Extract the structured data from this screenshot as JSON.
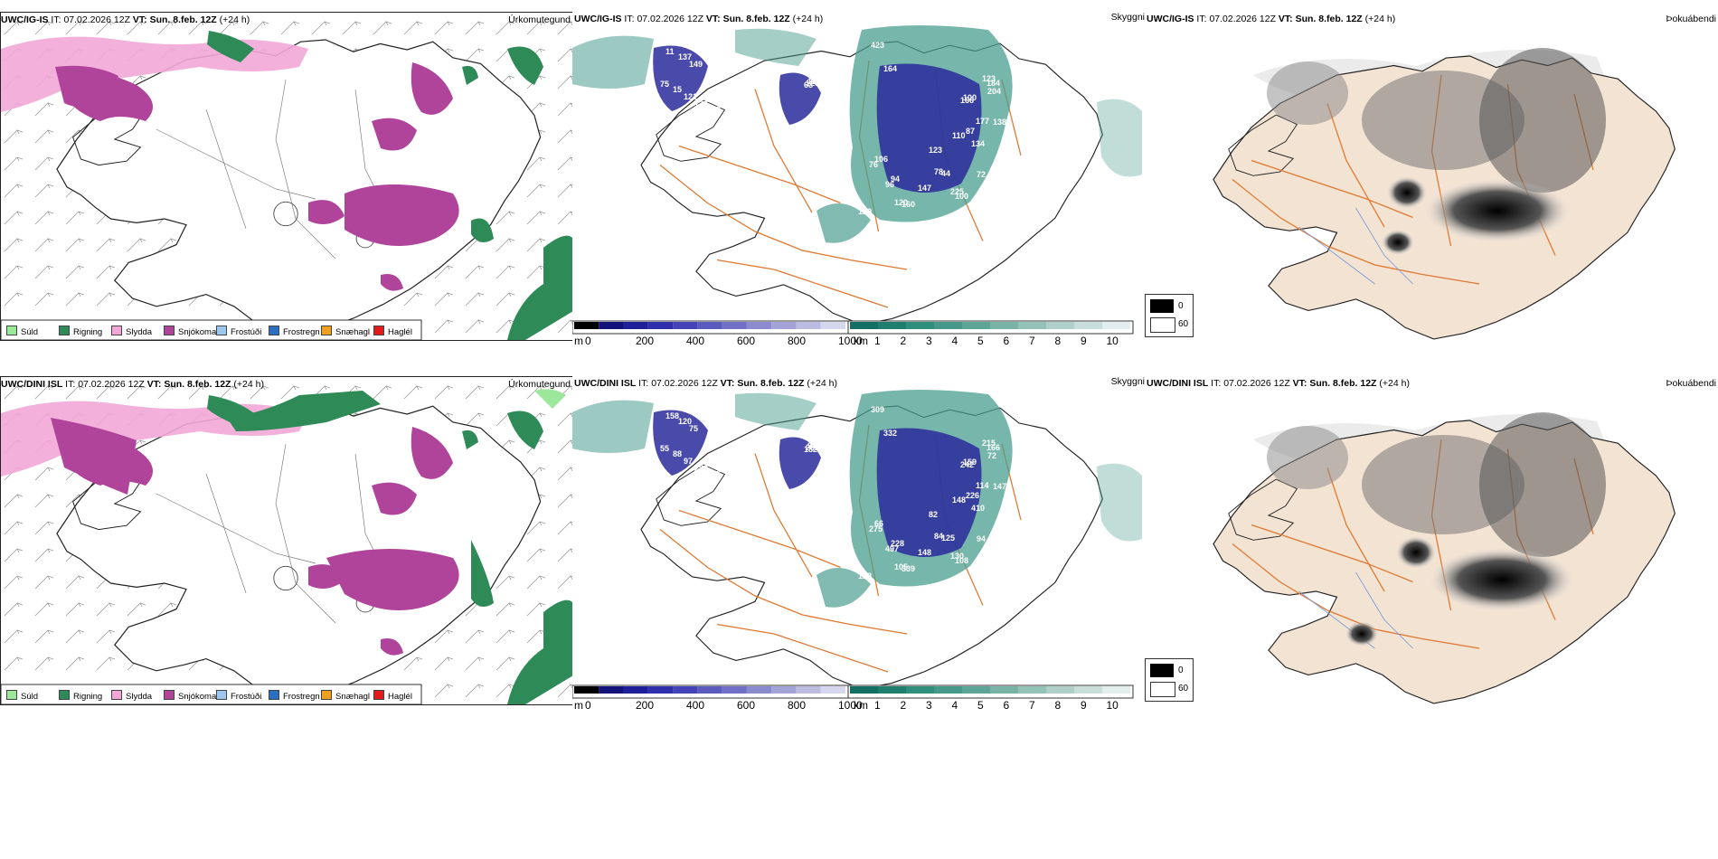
{
  "rows": [
    {
      "precip": {
        "model": "UWC/IG-IS",
        "it_label": "IT:",
        "it_value": "07.02.2026 12Z",
        "vt_label": "VT:",
        "vt_value": "Sun. 8.feb. 12Z",
        "lead": "(+24 h)",
        "title": "Úrkomutegund"
      },
      "cloud": {
        "model": "UWC/IG-IS",
        "it_label": "IT:",
        "it_value": "07.02.2026 12Z",
        "vt_label": "VT:",
        "vt_value": "Sun. 8.feb. 12Z",
        "lead": "(+24 h)",
        "title": "Skyggni",
        "base_values": [
          "423",
          "11",
          "63",
          "204",
          "94",
          "100",
          "130",
          "128",
          "134",
          "106",
          "123",
          "75",
          "115",
          "100",
          "129",
          "120",
          "149",
          "140",
          "138",
          "225",
          "184",
          "99",
          "55",
          "72",
          "78",
          "110",
          "121",
          "109",
          "166",
          "189",
          "147",
          "99",
          "98",
          "178",
          "160",
          "164",
          "137",
          "125",
          "123",
          "96",
          "177",
          "150",
          "174",
          "87",
          "76",
          "44",
          "15",
          "10"
        ]
      },
      "fog": {
        "model": "UWC/IG-IS",
        "it_label": "IT:",
        "it_value": "07.02.2026 12Z",
        "vt_label": "VT:",
        "vt_value": "Sun. 8.feb. 12Z",
        "lead": "(+24 h)",
        "title": "Þokuábendi"
      }
    },
    {
      "precip": {
        "model": "UWC/DINI ISL",
        "it_label": "IT:",
        "it_value": "07.02.2026 12Z",
        "vt_label": "VT:",
        "vt_value": "Sun. 8.feb. 12Z",
        "lead": "(+24 h)",
        "title": "Úrkomutegund"
      },
      "cloud": {
        "model": "UWC/DINI ISL",
        "it_label": "IT:",
        "it_value": "07.02.2026 12Z",
        "vt_label": "VT:",
        "vt_value": "Sun. 8.feb. 12Z",
        "lead": "(+24 h)",
        "title": "Skyggni",
        "base_values": [
          "309",
          "158",
          "182",
          "72",
          "228",
          "159",
          "283",
          "262",
          "410",
          "66",
          "82",
          "55",
          "95",
          "108",
          "128",
          "105",
          "75",
          "267",
          "147",
          "130",
          "166",
          "233",
          "306",
          "94",
          "84",
          "148",
          "97",
          "271",
          "242",
          "82",
          "148",
          "110",
          "98",
          "180",
          "339",
          "332",
          "120",
          "228",
          "215",
          "497",
          "114",
          "156",
          "77",
          "226",
          "275",
          "125",
          "88",
          "66"
        ]
      },
      "fog": {
        "model": "UWC/DINI ISL",
        "it_label": "IT:",
        "it_value": "07.02.2026 12Z",
        "vt_label": "VT:",
        "vt_value": "Sun. 8.feb. 12Z",
        "lead": "(+24 h)",
        "title": "Þokuábendi"
      }
    }
  ],
  "precip_legend": [
    {
      "label": "Súld",
      "color": "#9be89b"
    },
    {
      "label": "Rigning",
      "color": "#2e8b57"
    },
    {
      "label": "Slydda",
      "color": "#f2a7d6"
    },
    {
      "label": "Snjókoma",
      "color": "#b0449b"
    },
    {
      "label": "Frostúði",
      "color": "#9cc8f0"
    },
    {
      "label": "Frostregn",
      "color": "#2b6fc0"
    },
    {
      "label": "Snæhagl",
      "color": "#f0a020"
    },
    {
      "label": "Haglél",
      "color": "#e31a1c"
    }
  ],
  "height_bar": {
    "unit": "m",
    "ticks": [
      "0",
      "200",
      "400",
      "600",
      "800",
      "1000"
    ],
    "colors": [
      "#000000",
      "#12127a",
      "#1f1f9a",
      "#2f2fae",
      "#4444b8",
      "#5a5abf",
      "#7070c6",
      "#8a8acf",
      "#a3a3d8",
      "#bcbce3",
      "#d6d6ee"
    ]
  },
  "vis_bar": {
    "unit": "km",
    "ticks": [
      "1",
      "2",
      "3",
      "4",
      "5",
      "6",
      "7",
      "8",
      "9",
      "10"
    ],
    "colors": [
      "#136f63",
      "#1f7f6f",
      "#2f8f7c",
      "#46998a",
      "#5da597",
      "#78b3a6",
      "#93c2b7",
      "#aed0c8",
      "#c8dfd9",
      "#e2eeeb"
    ]
  },
  "fog_legend": {
    "values": [
      "0",
      "60"
    ],
    "colors": [
      "#000000",
      "#ffffff"
    ]
  },
  "colors": {
    "snow": "#b0449b",
    "sleet": "#f2a7d6",
    "rain": "#2e8b57",
    "drizzle": "#9be89b",
    "cloud_dark": "#2a2a9c",
    "cloud_teal": "#4a9d8e",
    "road": "#e07830",
    "land": "#f3e3d3"
  }
}
